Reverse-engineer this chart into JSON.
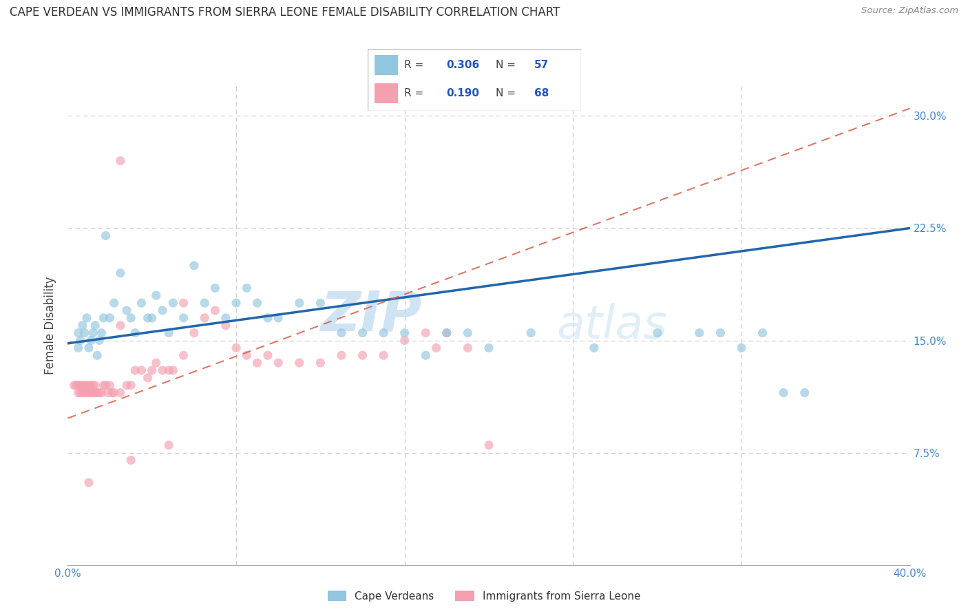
{
  "title": "CAPE VERDEAN VS IMMIGRANTS FROM SIERRA LEONE FEMALE DISABILITY CORRELATION CHART",
  "source": "Source: ZipAtlas.com",
  "ylabel": "Female Disability",
  "xlim": [
    0.0,
    0.4
  ],
  "ylim": [
    0.0,
    0.32
  ],
  "R_blue": 0.306,
  "N_blue": 57,
  "R_pink": 0.19,
  "N_pink": 68,
  "blue_color": "#92c5de",
  "pink_color": "#f4a0b0",
  "blue_line_color": "#2166ac",
  "pink_line_color": "#d6604d",
  "legend_label_blue": "Cape Verdeans",
  "legend_label_pink": "Immigrants from Sierra Leone",
  "watermark_zip": "ZIP",
  "watermark_atlas": "atlas",
  "blue_line_x0": 0.0,
  "blue_line_y0": 0.148,
  "blue_line_x1": 0.4,
  "blue_line_y1": 0.225,
  "pink_line_x0": 0.0,
  "pink_line_y0": 0.098,
  "pink_line_x1": 0.4,
  "pink_line_y1": 0.305,
  "blue_scatter_x": [
    0.005,
    0.005,
    0.006,
    0.007,
    0.008,
    0.009,
    0.01,
    0.011,
    0.012,
    0.013,
    0.014,
    0.015,
    0.016,
    0.017,
    0.018,
    0.02,
    0.022,
    0.025,
    0.028,
    0.03,
    0.032,
    0.035,
    0.038,
    0.04,
    0.042,
    0.045,
    0.048,
    0.05,
    0.055,
    0.06,
    0.065,
    0.07,
    0.075,
    0.08,
    0.085,
    0.09,
    0.095,
    0.1,
    0.11,
    0.12,
    0.13,
    0.14,
    0.15,
    0.16,
    0.17,
    0.18,
    0.19,
    0.2,
    0.22,
    0.25,
    0.28,
    0.3,
    0.31,
    0.32,
    0.33,
    0.34,
    0.35
  ],
  "blue_scatter_y": [
    0.155,
    0.145,
    0.15,
    0.16,
    0.155,
    0.165,
    0.145,
    0.15,
    0.155,
    0.16,
    0.14,
    0.15,
    0.155,
    0.165,
    0.22,
    0.165,
    0.175,
    0.195,
    0.17,
    0.165,
    0.155,
    0.175,
    0.165,
    0.165,
    0.18,
    0.17,
    0.155,
    0.175,
    0.165,
    0.2,
    0.175,
    0.185,
    0.165,
    0.175,
    0.185,
    0.175,
    0.165,
    0.165,
    0.175,
    0.175,
    0.155,
    0.155,
    0.155,
    0.155,
    0.14,
    0.155,
    0.155,
    0.145,
    0.155,
    0.145,
    0.155,
    0.155,
    0.155,
    0.145,
    0.155,
    0.115,
    0.115
  ],
  "pink_scatter_x": [
    0.003,
    0.004,
    0.005,
    0.005,
    0.005,
    0.006,
    0.006,
    0.007,
    0.007,
    0.008,
    0.008,
    0.009,
    0.009,
    0.01,
    0.01,
    0.011,
    0.011,
    0.012,
    0.012,
    0.013,
    0.013,
    0.014,
    0.015,
    0.016,
    0.017,
    0.018,
    0.019,
    0.02,
    0.021,
    0.022,
    0.025,
    0.028,
    0.03,
    0.032,
    0.035,
    0.038,
    0.04,
    0.042,
    0.045,
    0.048,
    0.05,
    0.055,
    0.06,
    0.065,
    0.07,
    0.075,
    0.08,
    0.085,
    0.09,
    0.095,
    0.1,
    0.11,
    0.12,
    0.13,
    0.14,
    0.15,
    0.16,
    0.17,
    0.175,
    0.18,
    0.19,
    0.2,
    0.055,
    0.048,
    0.025,
    0.025,
    0.03,
    0.01
  ],
  "pink_scatter_y": [
    0.12,
    0.12,
    0.12,
    0.115,
    0.12,
    0.115,
    0.12,
    0.12,
    0.115,
    0.12,
    0.115,
    0.115,
    0.12,
    0.12,
    0.115,
    0.12,
    0.115,
    0.12,
    0.115,
    0.115,
    0.12,
    0.115,
    0.115,
    0.115,
    0.12,
    0.12,
    0.115,
    0.12,
    0.115,
    0.115,
    0.115,
    0.12,
    0.12,
    0.13,
    0.13,
    0.125,
    0.13,
    0.135,
    0.13,
    0.13,
    0.13,
    0.14,
    0.155,
    0.165,
    0.17,
    0.16,
    0.145,
    0.14,
    0.135,
    0.14,
    0.135,
    0.135,
    0.135,
    0.14,
    0.14,
    0.14,
    0.15,
    0.155,
    0.145,
    0.155,
    0.145,
    0.08,
    0.175,
    0.08,
    0.27,
    0.16,
    0.07,
    0.055
  ]
}
